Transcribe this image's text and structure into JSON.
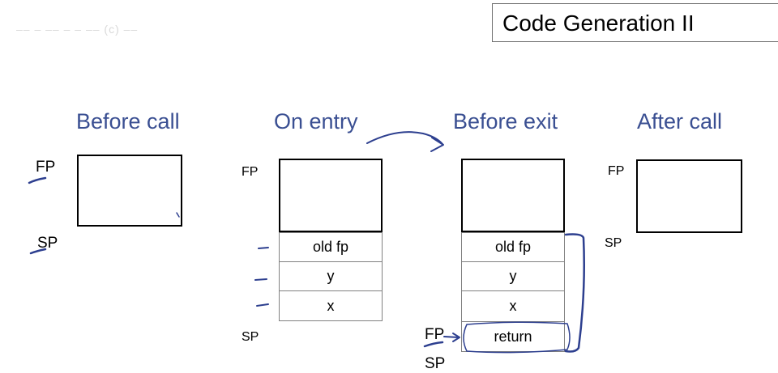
{
  "header": {
    "title": "Code Generation II",
    "watermark": "–– – –– – – –– (c) ––"
  },
  "columns": {
    "before_call": {
      "title": "Before call",
      "fp": "FP",
      "sp": "SP"
    },
    "on_entry": {
      "title": "On entry",
      "fp": "FP",
      "sp": "SP",
      "cells": [
        "old fp",
        "y",
        "x"
      ]
    },
    "before_exit": {
      "title": "Before exit",
      "fp": "FP",
      "sp": "SP",
      "cells": [
        "old fp",
        "y",
        "x",
        "return"
      ]
    },
    "after_call": {
      "title": "After call",
      "fp": "FP",
      "sp": "SP"
    }
  },
  "colors": {
    "title_blue": "#3a4f92",
    "ink_blue": "#2d3f8f"
  }
}
